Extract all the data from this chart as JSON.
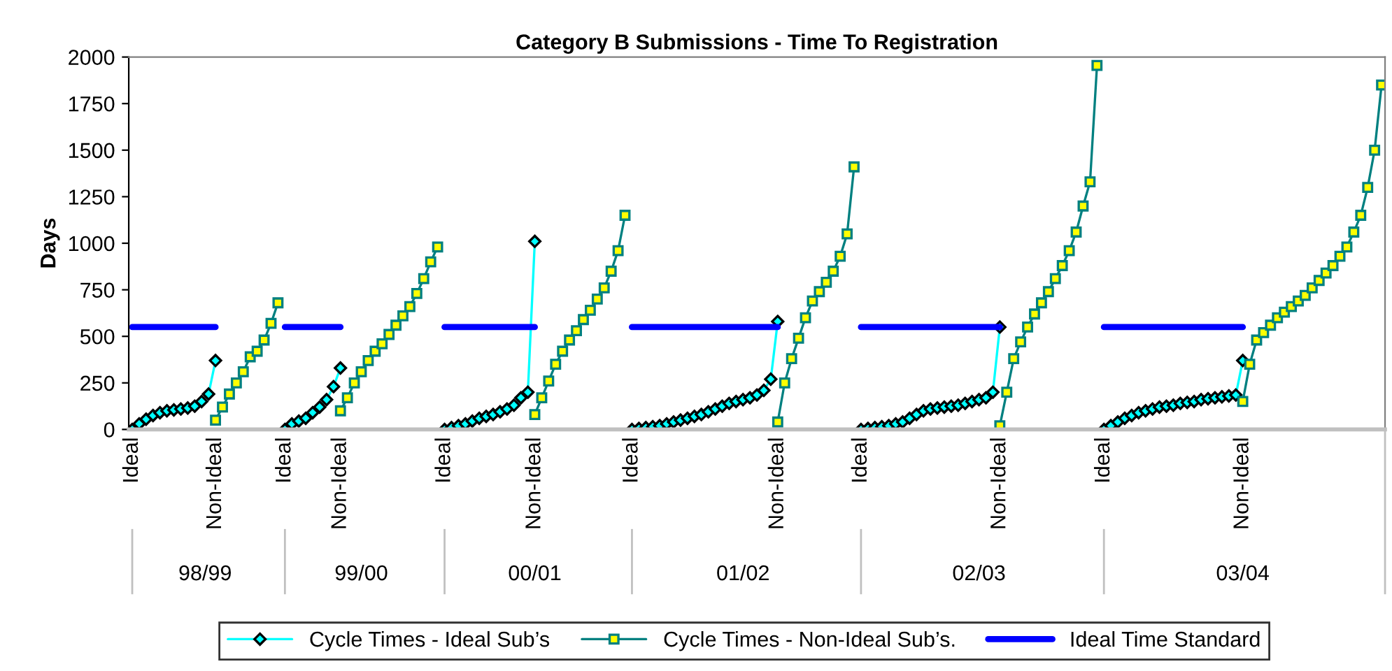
{
  "chart_data": {
    "type": "line",
    "title": "Category B Submissions - Time To Registration",
    "ylabel": "Days",
    "categories": [
      "Ideal",
      null,
      null,
      null,
      null,
      null,
      null,
      null,
      null,
      null,
      null,
      null,
      "Non-Ideal",
      null,
      null,
      null,
      null,
      null,
      null,
      null,
      null,
      null,
      "Ideal",
      null,
      null,
      null,
      null,
      null,
      null,
      null,
      "Non-Ideal",
      null,
      null,
      null,
      null,
      null,
      null,
      null,
      null,
      null,
      null,
      null,
      null,
      null,
      null,
      "Ideal",
      null,
      null,
      null,
      null,
      null,
      null,
      null,
      null,
      null,
      null,
      null,
      null,
      "Non-Ideal",
      null,
      null,
      null,
      null,
      null,
      null,
      null,
      null,
      null,
      null,
      null,
      null,
      null,
      "Ideal",
      null,
      null,
      null,
      null,
      null,
      null,
      null,
      null,
      null,
      null,
      null,
      null,
      null,
      null,
      null,
      null,
      null,
      null,
      null,
      null,
      "Non-Ideal",
      null,
      null,
      null,
      null,
      null,
      null,
      null,
      null,
      null,
      null,
      null,
      "Ideal",
      null,
      null,
      null,
      null,
      null,
      null,
      null,
      null,
      null,
      null,
      null,
      null,
      null,
      null,
      null,
      null,
      null,
      null,
      null,
      "Non-Ideal",
      null,
      null,
      null,
      null,
      null,
      null,
      null,
      null,
      null,
      null,
      null,
      null,
      null,
      null,
      "Ideal",
      null,
      null,
      null,
      null,
      null,
      null,
      null,
      null,
      null,
      null,
      null,
      null,
      null,
      null,
      null,
      null,
      null,
      null,
      null,
      "Non-Ideal",
      null,
      null,
      null,
      null,
      null,
      null,
      null,
      null,
      null,
      null,
      null,
      null,
      null,
      null,
      null,
      null,
      null,
      null,
      null,
      null
    ],
    "series": [
      {
        "name": "Cycle Times - Ideal Sub’s",
        "color": "#00ffff",
        "marker": "diamond",
        "values": [
          0,
          30,
          55,
          75,
          90,
          100,
          105,
          110,
          115,
          125,
          150,
          190,
          370,
          null,
          null,
          null,
          null,
          null,
          null,
          null,
          null,
          null,
          0,
          30,
          45,
          60,
          90,
          120,
          160,
          230,
          330,
          null,
          null,
          null,
          null,
          null,
          null,
          null,
          null,
          null,
          null,
          null,
          null,
          null,
          null,
          0,
          10,
          20,
          30,
          45,
          60,
          70,
          80,
          95,
          110,
          130,
          170,
          200,
          1010,
          null,
          null,
          null,
          null,
          null,
          null,
          null,
          null,
          null,
          null,
          null,
          null,
          null,
          0,
          5,
          10,
          15,
          20,
          30,
          40,
          50,
          60,
          70,
          80,
          95,
          110,
          125,
          140,
          150,
          160,
          170,
          185,
          210,
          270,
          580,
          null,
          null,
          null,
          null,
          null,
          null,
          null,
          null,
          null,
          null,
          null,
          0,
          5,
          10,
          15,
          20,
          30,
          40,
          60,
          80,
          100,
          110,
          115,
          120,
          125,
          130,
          140,
          150,
          160,
          170,
          200,
          550,
          null,
          null,
          null,
          null,
          null,
          null,
          null,
          null,
          null,
          null,
          null,
          null,
          null,
          null,
          0,
          20,
          40,
          60,
          75,
          90,
          100,
          110,
          120,
          125,
          130,
          140,
          145,
          150,
          160,
          165,
          170,
          175,
          180,
          185,
          370,
          null,
          null,
          null,
          null,
          null,
          null,
          null,
          null,
          null,
          null,
          null,
          null,
          null,
          null,
          null,
          null,
          null,
          null,
          null,
          null
        ]
      },
      {
        "name": "Cycle Times - Non-Ideal Sub’s.",
        "color": "#008080",
        "marker": "square",
        "values": [
          null,
          null,
          null,
          null,
          null,
          null,
          null,
          null,
          null,
          null,
          null,
          null,
          50,
          120,
          190,
          250,
          310,
          390,
          420,
          480,
          570,
          680,
          null,
          null,
          null,
          null,
          null,
          null,
          null,
          null,
          100,
          170,
          250,
          310,
          370,
          420,
          460,
          510,
          560,
          610,
          660,
          730,
          810,
          900,
          980,
          null,
          null,
          null,
          null,
          null,
          null,
          null,
          null,
          null,
          null,
          null,
          null,
          null,
          80,
          170,
          260,
          350,
          420,
          480,
          530,
          590,
          640,
          700,
          760,
          850,
          960,
          1150,
          null,
          null,
          null,
          null,
          null,
          null,
          null,
          null,
          null,
          null,
          null,
          null,
          null,
          null,
          null,
          null,
          null,
          null,
          null,
          null,
          null,
          40,
          250,
          380,
          490,
          600,
          690,
          740,
          790,
          850,
          930,
          1050,
          1410,
          null,
          null,
          null,
          null,
          null,
          null,
          null,
          null,
          null,
          null,
          null,
          null,
          null,
          null,
          null,
          null,
          null,
          null,
          null,
          null,
          20,
          200,
          380,
          470,
          550,
          620,
          680,
          740,
          810,
          880,
          960,
          1060,
          1200,
          1330,
          1955,
          null,
          null,
          null,
          null,
          null,
          null,
          null,
          null,
          null,
          null,
          null,
          null,
          null,
          null,
          null,
          null,
          null,
          null,
          null,
          null,
          150,
          350,
          480,
          520,
          560,
          600,
          630,
          660,
          690,
          720,
          760,
          800,
          840,
          880,
          930,
          980,
          1060,
          1150,
          1300,
          1500,
          1850
        ]
      },
      {
        "name": "Ideal Time Standard",
        "color": "#0000ff",
        "marker": "none",
        "values": [
          550,
          550,
          550,
          550,
          550,
          550,
          550,
          550,
          550,
          550,
          550,
          550,
          550,
          null,
          null,
          null,
          null,
          null,
          null,
          null,
          null,
          null,
          550,
          550,
          550,
          550,
          550,
          550,
          550,
          550,
          550,
          null,
          null,
          null,
          null,
          null,
          null,
          null,
          null,
          null,
          null,
          null,
          null,
          null,
          null,
          550,
          550,
          550,
          550,
          550,
          550,
          550,
          550,
          550,
          550,
          550,
          550,
          550,
          550,
          null,
          null,
          null,
          null,
          null,
          null,
          null,
          null,
          null,
          null,
          null,
          null,
          null,
          550,
          550,
          550,
          550,
          550,
          550,
          550,
          550,
          550,
          550,
          550,
          550,
          550,
          550,
          550,
          550,
          550,
          550,
          550,
          550,
          550,
          550,
          null,
          null,
          null,
          null,
          null,
          null,
          null,
          null,
          null,
          null,
          null,
          550,
          550,
          550,
          550,
          550,
          550,
          550,
          550,
          550,
          550,
          550,
          550,
          550,
          550,
          550,
          550,
          550,
          550,
          550,
          550,
          550,
          null,
          null,
          null,
          null,
          null,
          null,
          null,
          null,
          null,
          null,
          null,
          null,
          null,
          null,
          550,
          550,
          550,
          550,
          550,
          550,
          550,
          550,
          550,
          550,
          550,
          550,
          550,
          550,
          550,
          550,
          550,
          550,
          550,
          550,
          550,
          null,
          null,
          null,
          null,
          null,
          null,
          null,
          null,
          null,
          null,
          null,
          null,
          null,
          null,
          null,
          null,
          null,
          null,
          null,
          null
        ]
      }
    ],
    "annotations": [
      "98/99",
      "99/00",
      "00/01",
      "01/02",
      "02/03",
      "03/04"
    ],
    "ylim": [
      0,
      2000
    ],
    "yticks": [
      0,
      250,
      500,
      750,
      1000,
      1250,
      1500,
      1750,
      2000
    ],
    "grid": false,
    "legend": "bottom",
    "line_style": "solid"
  }
}
